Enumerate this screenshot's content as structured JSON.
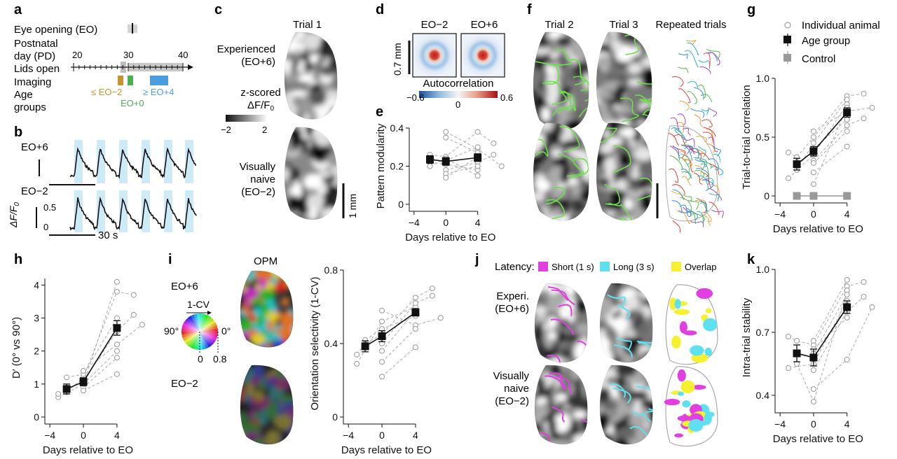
{
  "panels": {
    "a": {
      "label": "a",
      "rows": [
        "Eye opening (EO)",
        "Postnatal",
        "day (PD)",
        "Lids open",
        "Imaging",
        "Age",
        "groups"
      ],
      "axis_ticks": [
        "20",
        "30",
        "40"
      ],
      "age_labels": [
        "≤ EO−2",
        "EO+0",
        "≥ EO+4"
      ],
      "colors": {
        "eo_minus2": "#c8922e",
        "eo0": "#4caf50",
        "eo_plus4": "#4a9ee0"
      }
    },
    "b": {
      "label": "b",
      "top_label": "EO+6",
      "bottom_label": "EO−2",
      "scale_value": "0.5",
      "scale_zero": "0",
      "ylabel": "ΔF/F",
      "ylabel_sub": "0",
      "time_bar": "30 s"
    },
    "c": {
      "label": "c",
      "title": "Trial 1",
      "experienced": [
        "Experienced",
        "(EO+6)"
      ],
      "naive": [
        "Visually",
        "naive",
        "(EO−2)"
      ],
      "cbar_title": [
        "z-scored",
        "ΔF/F"
      ],
      "cbar_title_sub": "0",
      "cbar_ticks": [
        "−2",
        "2"
      ],
      "scale": "1 mm"
    },
    "d": {
      "label": "d",
      "titles": [
        "EO−2",
        "EO+6"
      ],
      "scale": "0.7 mm",
      "cbar_label": "Autocorrelation",
      "cbar_ticks": [
        "−0.6",
        "0",
        "0.6"
      ]
    },
    "f": {
      "label": "f",
      "titles": [
        "Trial 2",
        "Trial 3",
        "Repeated trials"
      ]
    },
    "h": {
      "label": "h"
    },
    "i": {
      "label": "i",
      "top_label": "EO+6",
      "bottom_label": "EO−2",
      "opm_title": "OPM",
      "wheel_label": "1-CV",
      "wheel_angles": [
        "90°",
        "0°"
      ],
      "wheel_range": [
        "0",
        "0.8"
      ]
    },
    "j": {
      "label": "j",
      "latency_title": "Latency:",
      "legend": [
        "Short (1 s)",
        "Long (3 s)",
        "Overlap"
      ],
      "legend_colors": [
        "#e040e0",
        "#5ee0f0",
        "#f5f030"
      ],
      "experienced": [
        "Experi.",
        "(EO+6)"
      ],
      "naive": [
        "Visually",
        "naive",
        "(EO−2)"
      ]
    },
    "g_legend": {
      "items": [
        "Individual animal",
        "Age group",
        "Control"
      ]
    }
  },
  "chart_data": [
    {
      "id": "e",
      "label": "e",
      "type": "line",
      "xlabel": "Days relative to EO",
      "ylabel": "Pattern modularity",
      "xlim": [
        -4.6,
        7.2
      ],
      "ylim": [
        0,
        0.4
      ],
      "xticks": [
        -4,
        0,
        4
      ],
      "yticks": [
        0,
        0.2,
        0.4
      ],
      "xtick_labels": [
        "−4",
        "0",
        "4"
      ],
      "ytick_labels": [
        "0",
        "0.2",
        "0.4"
      ],
      "series": [
        {
          "role": "age_group",
          "x": [
            -2,
            0,
            4
          ],
          "y": [
            0.235,
            0.225,
            0.245
          ],
          "err": [
            0.02,
            0.02,
            0.02
          ]
        },
        {
          "role": "animal",
          "x": [
            -2,
            0,
            4,
            6
          ],
          "y": [
            0.26,
            0.25,
            0.38,
            0.32
          ]
        },
        {
          "role": "animal",
          "x": [
            -2,
            0,
            4
          ],
          "y": [
            0.22,
            0.21,
            0.18
          ]
        },
        {
          "role": "animal",
          "x": [
            0,
            4,
            7
          ],
          "y": [
            0.38,
            0.29,
            0.2
          ]
        },
        {
          "role": "animal",
          "x": [
            0,
            4
          ],
          "y": [
            0.35,
            0.27
          ]
        },
        {
          "role": "animal",
          "x": [
            0,
            4
          ],
          "y": [
            0.23,
            0.3
          ]
        },
        {
          "role": "animal",
          "x": [
            0,
            4,
            6
          ],
          "y": [
            0.18,
            0.22,
            0.26
          ]
        },
        {
          "role": "animal",
          "x": [
            0,
            4
          ],
          "y": [
            0.16,
            0.2
          ]
        },
        {
          "role": "animal",
          "x": [
            -2,
            0,
            4
          ],
          "y": [
            0.2,
            0.24,
            0.15
          ]
        },
        {
          "role": "animal",
          "x": [
            0,
            4
          ],
          "y": [
            0.14,
            0.25
          ]
        }
      ]
    },
    {
      "id": "g",
      "label": "g",
      "type": "line",
      "xlabel": "Days relative to EO",
      "ylabel": "Trial-to-trial correlation",
      "xlim": [
        -4.6,
        8.3
      ],
      "ylim": [
        0,
        1.0
      ],
      "xticks": [
        -4,
        0,
        4
      ],
      "yticks": [
        0,
        0.5,
        1.0
      ],
      "xtick_labels": [
        "−4",
        "0",
        "4"
      ],
      "ytick_labels": [
        "0",
        "0.5",
        "1.0"
      ],
      "series": [
        {
          "role": "age_group",
          "x": [
            -2,
            0,
            4
          ],
          "y": [
            0.27,
            0.38,
            0.71
          ],
          "err": [
            0.05,
            0.04,
            0.04
          ]
        },
        {
          "role": "control",
          "x": [
            -2,
            0,
            4
          ],
          "y": [
            0,
            0,
            0
          ],
          "err": [
            0.01,
            0.01,
            0.01
          ]
        },
        {
          "role": "animal",
          "x": [
            -3,
            -2,
            0,
            4,
            6
          ],
          "y": [
            0.37,
            0.33,
            0.5,
            0.85,
            0.87
          ]
        },
        {
          "role": "animal",
          "x": [
            -3,
            0,
            4
          ],
          "y": [
            0.15,
            0.35,
            0.78
          ]
        },
        {
          "role": "animal",
          "x": [
            -2,
            0,
            4
          ],
          "y": [
            0.22,
            0.45,
            0.82
          ]
        },
        {
          "role": "animal",
          "x": [
            0,
            4,
            7
          ],
          "y": [
            0.55,
            0.72,
            0.75
          ]
        },
        {
          "role": "animal",
          "x": [
            0,
            4
          ],
          "y": [
            0.4,
            0.65
          ]
        },
        {
          "role": "animal",
          "x": [
            0,
            4,
            6
          ],
          "y": [
            0.3,
            0.6,
            0.66
          ]
        },
        {
          "role": "animal",
          "x": [
            0,
            4
          ],
          "y": [
            0.28,
            0.55
          ]
        },
        {
          "role": "animal",
          "x": [
            0,
            4
          ],
          "y": [
            0.2,
            0.42
          ]
        },
        {
          "role": "animal",
          "x": [
            0,
            4
          ],
          "y": [
            0.1,
            0.75
          ]
        }
      ]
    },
    {
      "id": "h",
      "label": "h",
      "type": "line",
      "xlabel": "Days relative to EO",
      "ylabel": "D′ (0° vs 90°)",
      "xlim": [
        -4.6,
        7.6
      ],
      "ylim": [
        0,
        4.2
      ],
      "xticks": [
        -4,
        0,
        4
      ],
      "yticks": [
        0,
        1,
        2,
        3,
        4
      ],
      "xtick_labels": [
        "−4",
        "0",
        "4"
      ],
      "ytick_labels": [
        "0",
        "1",
        "2",
        "3",
        "4"
      ],
      "series": [
        {
          "role": "age_group",
          "x": [
            -2,
            0,
            4
          ],
          "y": [
            0.85,
            1.07,
            2.7
          ],
          "err": [
            0.15,
            0.12,
            0.22
          ]
        },
        {
          "role": "animal",
          "x": [
            -3,
            0,
            4
          ],
          "y": [
            0.6,
            1.0,
            4.1
          ]
        },
        {
          "role": "animal",
          "x": [
            -3,
            -2,
            0,
            4,
            6
          ],
          "y": [
            0.7,
            0.75,
            1.2,
            3.8,
            3.7
          ]
        },
        {
          "role": "animal",
          "x": [
            -2,
            0,
            4
          ],
          "y": [
            1.2,
            1.3,
            3.0
          ]
        },
        {
          "role": "animal",
          "x": [
            0,
            4,
            7
          ],
          "y": [
            1.4,
            2.2,
            2.8
          ]
        },
        {
          "role": "animal",
          "x": [
            0,
            4
          ],
          "y": [
            0.9,
            1.8
          ]
        },
        {
          "role": "animal",
          "x": [
            0,
            4
          ],
          "y": [
            0.8,
            1.3
          ]
        },
        {
          "role": "animal",
          "x": [
            0,
            4,
            6
          ],
          "y": [
            1.1,
            2.6,
            3.1
          ]
        },
        {
          "role": "animal",
          "x": [
            0,
            4
          ],
          "y": [
            1.0,
            2.0
          ]
        }
      ]
    },
    {
      "id": "i",
      "label": "i",
      "type": "line",
      "xlabel": "Days relative to EO",
      "ylabel": "Orientation selectivity (1-CV)",
      "xlim": [
        -4.6,
        7.6
      ],
      "ylim": [
        0,
        0.8
      ],
      "xticks": [
        -4,
        0,
        4
      ],
      "yticks": [
        0,
        0.4,
        0.8
      ],
      "xtick_labels": [
        "−4",
        "0",
        "4"
      ],
      "ytick_labels": [
        "0",
        "0.4",
        "0.8"
      ],
      "series": [
        {
          "role": "age_group",
          "x": [
            -2,
            0,
            4
          ],
          "y": [
            0.385,
            0.44,
            0.57
          ],
          "err": [
            0.03,
            0.03,
            0.02
          ]
        },
        {
          "role": "animal",
          "x": [
            -3,
            0,
            4
          ],
          "y": [
            0.29,
            0.52,
            0.6
          ]
        },
        {
          "role": "animal",
          "x": [
            -3,
            -2,
            0,
            4,
            6
          ],
          "y": [
            0.34,
            0.4,
            0.45,
            0.65,
            0.7
          ]
        },
        {
          "role": "animal",
          "x": [
            -2,
            0,
            4
          ],
          "y": [
            0.42,
            0.48,
            0.55
          ]
        },
        {
          "role": "animal",
          "x": [
            0,
            4,
            7
          ],
          "y": [
            0.58,
            0.5,
            0.54
          ]
        },
        {
          "role": "animal",
          "x": [
            0,
            4
          ],
          "y": [
            0.36,
            0.58
          ]
        },
        {
          "role": "animal",
          "x": [
            0,
            4
          ],
          "y": [
            0.3,
            0.48
          ]
        },
        {
          "role": "animal",
          "x": [
            0,
            4,
            6
          ],
          "y": [
            0.4,
            0.62,
            0.66
          ]
        },
        {
          "role": "animal",
          "x": [
            0,
            4
          ],
          "y": [
            0.22,
            0.38
          ]
        }
      ]
    },
    {
      "id": "k",
      "label": "k",
      "type": "line",
      "xlabel": "Days relative to EO",
      "ylabel": "Intra-trial stability",
      "xlim": [
        -4.6,
        8.3
      ],
      "ylim": [
        0.35,
        1.0
      ],
      "xticks": [
        -4,
        0,
        4
      ],
      "yticks": [
        0.4,
        0.7,
        1.0
      ],
      "xtick_labels": [
        "−4",
        "0",
        "4"
      ],
      "ytick_labels": [
        "0.4",
        "0.7",
        "1.0"
      ],
      "series": [
        {
          "role": "age_group",
          "x": [
            -2,
            0,
            4
          ],
          "y": [
            0.6,
            0.58,
            0.82
          ],
          "err": [
            0.04,
            0.04,
            0.03
          ]
        },
        {
          "role": "animal",
          "x": [
            -3,
            -2,
            0,
            4,
            6
          ],
          "y": [
            0.68,
            0.66,
            0.64,
            0.92,
            0.94
          ]
        },
        {
          "role": "animal",
          "x": [
            -3,
            0,
            4
          ],
          "y": [
            0.53,
            0.55,
            0.85
          ]
        },
        {
          "role": "animal",
          "x": [
            -2,
            0,
            4
          ],
          "y": [
            0.55,
            0.37,
            0.9
          ]
        },
        {
          "role": "animal",
          "x": [
            0,
            4,
            7
          ],
          "y": [
            0.43,
            0.57,
            0.82
          ]
        },
        {
          "role": "animal",
          "x": [
            0,
            4
          ],
          "y": [
            0.6,
            0.88
          ]
        },
        {
          "role": "animal",
          "x": [
            0,
            4,
            6
          ],
          "y": [
            0.52,
            0.8,
            0.87
          ]
        },
        {
          "role": "animal",
          "x": [
            0,
            4
          ],
          "y": [
            0.66,
            0.95
          ]
        },
        {
          "role": "animal",
          "x": [
            0,
            4
          ],
          "y": [
            0.62,
            0.77
          ]
        }
      ]
    }
  ]
}
